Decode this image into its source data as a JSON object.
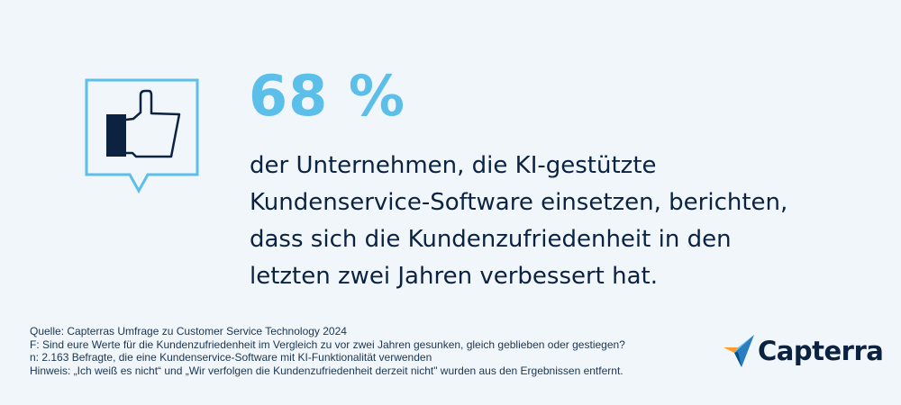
{
  "headline": {
    "value": "68 %",
    "color": "#5bbfe9"
  },
  "statement": {
    "lines": [
      "der Unternehmen, die KI-gestützte",
      "Kundenservice-Software einsetzen, berichten,",
      "dass sich die Kundenzufriedenheit in den",
      "letzten zwei Jahren verbessert hat."
    ]
  },
  "icon": {
    "name": "thumbs-up-speech-bubble-icon",
    "accent": "#5bbfe9",
    "dark": "#0b2240"
  },
  "footer": {
    "source": "Quelle: Capterras Umfrage zu Customer Service Technology 2024",
    "question": "F: Sind eure Werte für die Kundenzufriedenheit im Vergleich zu vor zwei Jahren gesunken, gleich geblieben oder gestiegen?",
    "sample": "n: 2.163 Befragte, die eine Kundenservice-Software mit KI-Funktionalität verwenden",
    "note": "Hinweis: „Ich weiß es nicht“ und „Wir verfolgen die Kundenzufriedenheit derzeit nicht\" wurden aus den Ergebnissen entfernt."
  },
  "logo": {
    "text": "Capterra",
    "colors": [
      "#ff9d28",
      "#68c5ed",
      "#044d80"
    ]
  }
}
